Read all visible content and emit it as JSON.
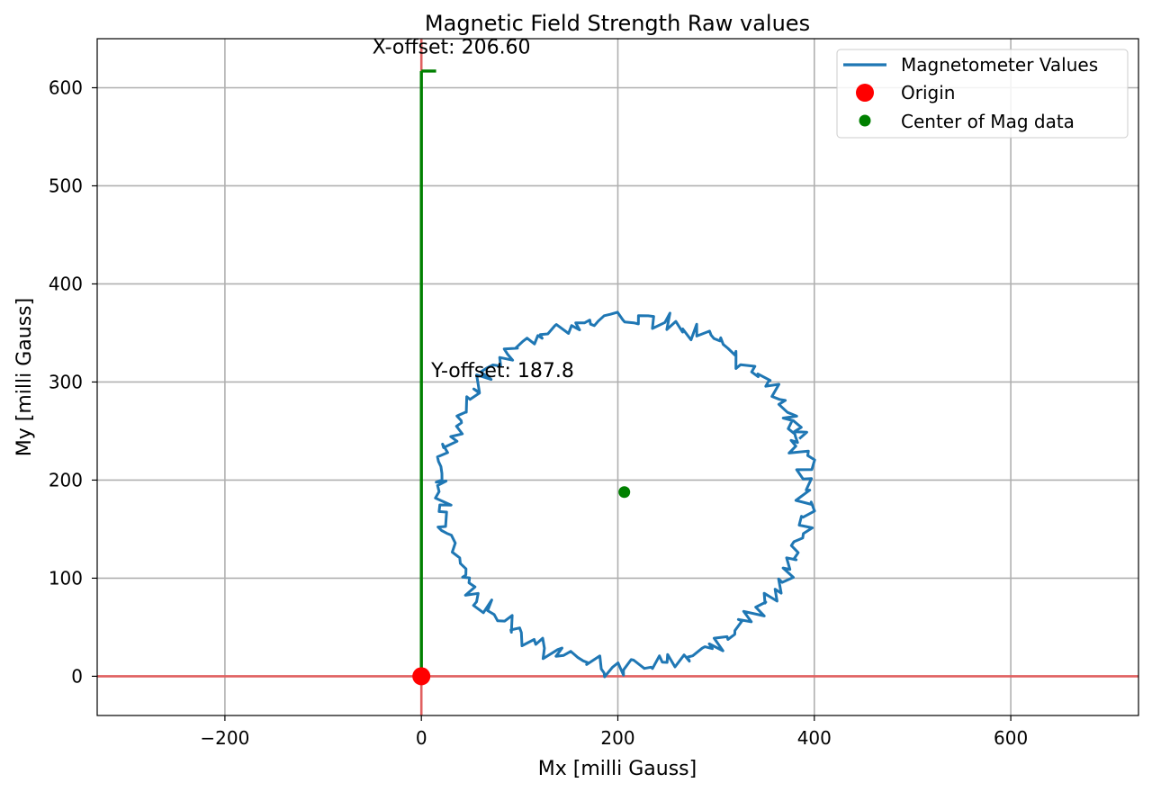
{
  "chart_data": {
    "type": "scatter",
    "title": "Magnetic Field Strength Raw values",
    "xlabel": "Mx [milli Gauss]",
    "ylabel": "My [milli Gauss]",
    "xlim": [
      -330,
      730
    ],
    "ylim": [
      -40,
      650
    ],
    "xticks": [
      -200,
      0,
      200,
      400,
      600
    ],
    "yticks": [
      0,
      100,
      200,
      300,
      400,
      500,
      600
    ],
    "xtick_labels": [
      "−200",
      "0",
      "200",
      "400",
      "600"
    ],
    "ytick_labels": [
      "0",
      "100",
      "200",
      "300",
      "400",
      "500",
      "600"
    ],
    "grid": true,
    "legend_position": "top-right",
    "series": [
      {
        "name": "Magnetometer Values",
        "kind": "line",
        "color": "#1f77b4",
        "center": [
          206.6,
          187.8
        ],
        "radius_mean": 177,
        "radius_jitter": 8,
        "samples": 240,
        "description_type": "noisy-circle"
      },
      {
        "name": "Origin",
        "kind": "marker",
        "color": "#ff0000",
        "x": [
          0
        ],
        "y": [
          0
        ]
      },
      {
        "name": "Center of Mag data",
        "kind": "marker",
        "color": "#008000",
        "x": [
          206.6
        ],
        "y": [
          187.8
        ]
      }
    ],
    "reference_lines": {
      "color": "#e06060",
      "horizontal_y": 0,
      "vertical_x": 0
    },
    "offset_bracket": {
      "color": "#008000",
      "x": 0,
      "y_from": 0,
      "y_to": 617,
      "tick_to_x": 15
    },
    "annotations": [
      {
        "text": "X-offset: 206.60",
        "x": -50,
        "y": 635
      },
      {
        "text": "Y-offset: 187.8",
        "x": 10,
        "y": 305
      }
    ]
  }
}
